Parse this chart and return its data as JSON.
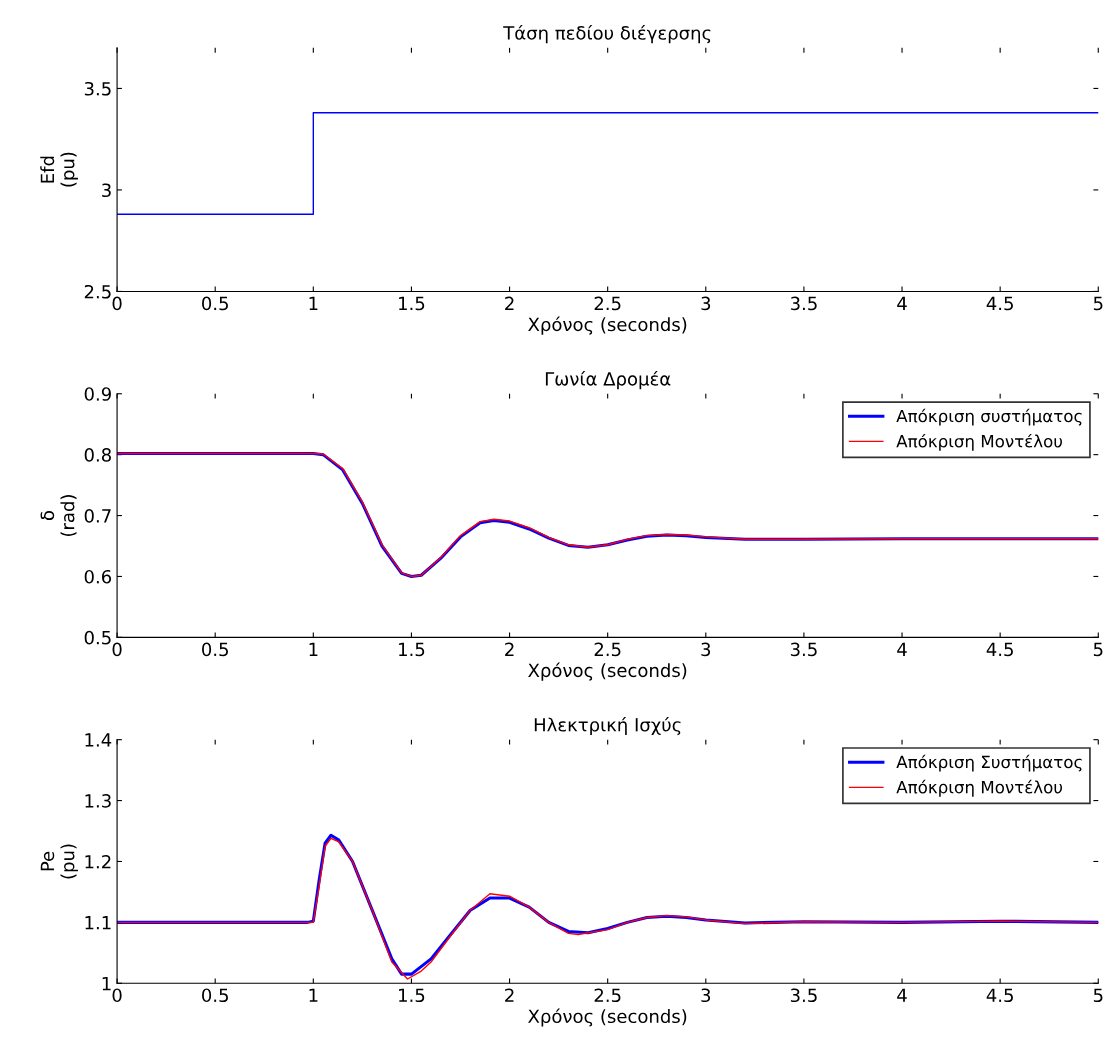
{
  "chart_data": [
    {
      "type": "line",
      "title": "Τάση πεδίου διέγερσης",
      "xlabel": "Χρόνος (seconds)",
      "ylabel": "Efd\n(pu)",
      "xlim": [
        0,
        5
      ],
      "xticks": [
        0,
        0.5,
        1,
        1.5,
        2,
        2.5,
        3,
        3.5,
        4,
        4.5,
        5
      ],
      "ylim": [
        2.5,
        3.7
      ],
      "yticks": [
        2.5,
        3,
        3.5
      ],
      "grid": false,
      "legend": false,
      "series": [
        {
          "color": "#0000ff",
          "x": [
            0,
            1,
            1,
            5
          ],
          "values": [
            2.88,
            2.88,
            3.38,
            3.38
          ]
        }
      ]
    },
    {
      "type": "line",
      "title": "Γωνία Δρομέα",
      "xlabel": "Χρόνος (seconds)",
      "ylabel": "δ\n(rad)",
      "xlim": [
        0,
        5
      ],
      "xticks": [
        0,
        0.5,
        1,
        1.5,
        2,
        2.5,
        3,
        3.5,
        4,
        4.5,
        5
      ],
      "ylim": [
        0.5,
        0.9
      ],
      "yticks": [
        0.5,
        0.6,
        0.7,
        0.8,
        0.9
      ],
      "grid": false,
      "legend": "top right",
      "series": [
        {
          "name": "Απόκριση συστήματος",
          "color": "#0000ff",
          "x": [
            0,
            0.5,
            1.0,
            1.05,
            1.15,
            1.25,
            1.35,
            1.45,
            1.5,
            1.55,
            1.65,
            1.75,
            1.85,
            1.92,
            2.0,
            2.1,
            2.2,
            2.3,
            2.4,
            2.5,
            2.6,
            2.7,
            2.8,
            2.9,
            3.0,
            3.2,
            3.5,
            4,
            4.5,
            5
          ],
          "values": [
            0.802,
            0.802,
            0.802,
            0.8,
            0.775,
            0.72,
            0.65,
            0.605,
            0.6,
            0.602,
            0.63,
            0.665,
            0.688,
            0.692,
            0.689,
            0.678,
            0.663,
            0.651,
            0.648,
            0.652,
            0.66,
            0.666,
            0.668,
            0.667,
            0.664,
            0.661,
            0.661,
            0.662,
            0.662,
            0.662
          ]
        },
        {
          "name": "Απόκριση Μοντέλου",
          "color": "#ff0000",
          "x": [
            0,
            0.5,
            1.0,
            1.05,
            1.15,
            1.25,
            1.35,
            1.45,
            1.5,
            1.55,
            1.65,
            1.75,
            1.85,
            1.92,
            2.0,
            2.1,
            2.2,
            2.3,
            2.4,
            2.5,
            2.6,
            2.7,
            2.8,
            2.9,
            3.0,
            3.2,
            3.5,
            4,
            4.5,
            5
          ],
          "values": [
            0.802,
            0.802,
            0.802,
            0.801,
            0.777,
            0.722,
            0.652,
            0.606,
            0.6,
            0.602,
            0.631,
            0.667,
            0.69,
            0.694,
            0.691,
            0.68,
            0.664,
            0.652,
            0.648,
            0.652,
            0.661,
            0.667,
            0.669,
            0.668,
            0.665,
            0.661,
            0.661,
            0.662,
            0.662,
            0.662
          ]
        }
      ]
    },
    {
      "type": "line",
      "title": "Ηλεκτρική Ισχύς",
      "xlabel": "Χρόνος (seconds)",
      "ylabel": "Pe\n(pu)",
      "xlim": [
        0,
        5
      ],
      "xticks": [
        0,
        0.5,
        1,
        1.5,
        2,
        2.5,
        3,
        3.5,
        4,
        4.5,
        5
      ],
      "ylim": [
        1,
        1.4
      ],
      "yticks": [
        1,
        1.1,
        1.2,
        1.3,
        1.4
      ],
      "grid": false,
      "legend": "top right",
      "series": [
        {
          "name": "Απόκριση Συστήματος",
          "color": "#0000ff",
          "x": [
            0,
            0.97,
            1.0,
            1.03,
            1.06,
            1.09,
            1.13,
            1.2,
            1.3,
            1.4,
            1.45,
            1.5,
            1.6,
            1.7,
            1.8,
            1.9,
            2.0,
            2.1,
            2.2,
            2.3,
            2.4,
            2.5,
            2.6,
            2.7,
            2.8,
            2.9,
            3.0,
            3.2,
            3.5,
            4,
            4.5,
            5
          ],
          "values": [
            1.1,
            1.1,
            1.102,
            1.17,
            1.23,
            1.243,
            1.235,
            1.2,
            1.12,
            1.04,
            1.015,
            1.015,
            1.04,
            1.08,
            1.12,
            1.14,
            1.14,
            1.125,
            1.1,
            1.085,
            1.083,
            1.09,
            1.1,
            1.108,
            1.11,
            1.108,
            1.104,
            1.099,
            1.101,
            1.1,
            1.102,
            1.1
          ]
        },
        {
          "name": "Απόκριση Μοντέλου",
          "color": "#ff0000",
          "x": [
            0,
            0.97,
            1.0,
            1.03,
            1.06,
            1.09,
            1.13,
            1.2,
            1.3,
            1.4,
            1.48,
            1.55,
            1.6,
            1.7,
            1.8,
            1.9,
            2.0,
            2.1,
            2.2,
            2.3,
            2.35,
            2.5,
            2.6,
            2.7,
            2.8,
            2.9,
            3.0,
            3.2,
            3.5,
            4,
            4.5,
            5
          ],
          "values": [
            1.1,
            1.1,
            1.1,
            1.16,
            1.225,
            1.238,
            1.232,
            1.2,
            1.12,
            1.035,
            1.007,
            1.02,
            1.035,
            1.078,
            1.12,
            1.147,
            1.143,
            1.125,
            1.1,
            1.082,
            1.08,
            1.088,
            1.1,
            1.108,
            1.111,
            1.109,
            1.104,
            1.098,
            1.101,
            1.1,
            1.102,
            1.1
          ]
        }
      ]
    }
  ]
}
